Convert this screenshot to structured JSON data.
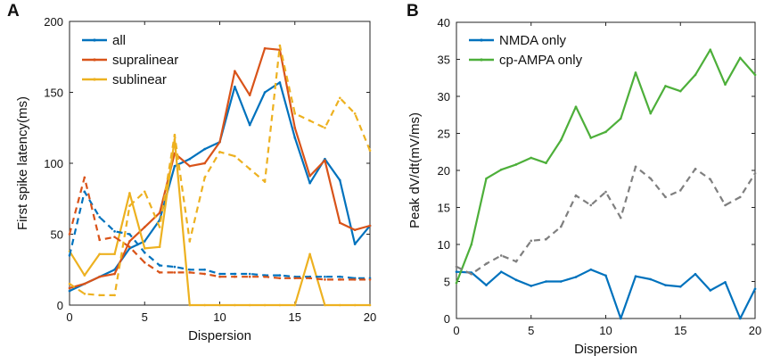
{
  "chart_data": [
    {
      "panel_label": "A",
      "type": "line",
      "xlabel": "Dispersion",
      "ylabel": "First spike latency(ms)",
      "xlim": [
        0,
        20
      ],
      "ylim": [
        0,
        200
      ],
      "xticks": [
        0,
        5,
        10,
        15,
        20
      ],
      "yticks": [
        0,
        50,
        100,
        150,
        200
      ],
      "legend_position": "top-left",
      "legend": [
        "all",
        "supralinear",
        "sublinear"
      ],
      "series": [
        {
          "name": "all",
          "style": "solid",
          "color": "#0072BD",
          "x": [
            0,
            1,
            2,
            3,
            4,
            5,
            6,
            7,
            8,
            9,
            10,
            11,
            12,
            13,
            14,
            15,
            16,
            17,
            18,
            19,
            20
          ],
          "y": [
            10,
            15,
            20,
            25,
            40,
            45,
            60,
            98,
            103,
            110,
            115,
            154,
            127,
            150,
            157,
            118,
            86,
            103,
            88,
            43,
            56
          ]
        },
        {
          "name": "supralinear",
          "style": "solid",
          "color": "#D95319",
          "x": [
            0,
            1,
            2,
            3,
            4,
            5,
            6,
            7,
            8,
            9,
            10,
            11,
            12,
            13,
            14,
            15,
            16,
            17,
            18,
            19,
            20
          ],
          "y": [
            12,
            15,
            20,
            22,
            45,
            55,
            65,
            107,
            98,
            100,
            115,
            165,
            148,
            181,
            180,
            125,
            91,
            102,
            58,
            53,
            56
          ]
        },
        {
          "name": "sublinear",
          "style": "solid",
          "color": "#EDB120",
          "x": [
            0,
            1,
            2,
            3,
            4,
            5,
            6,
            7,
            8,
            9,
            10,
            11,
            12,
            13,
            14,
            15,
            16,
            17,
            18,
            19,
            20
          ],
          "y": [
            38,
            21,
            36,
            36,
            79,
            40,
            41,
            117,
            0,
            0,
            0,
            0,
            0,
            0,
            0,
            0,
            36,
            0,
            0,
            0,
            0
          ]
        },
        {
          "name": "all (dashed)",
          "style": "dashed",
          "color": "#0072BD",
          "x": [
            0,
            1,
            2,
            3,
            4,
            5,
            6,
            7,
            8,
            9,
            10,
            11,
            12,
            13,
            14,
            15,
            16,
            17,
            18,
            19,
            20
          ],
          "y": [
            35,
            80,
            62,
            52,
            50,
            37,
            28,
            27,
            25,
            25,
            22,
            22,
            22,
            21,
            21,
            20,
            20,
            20,
            20,
            19,
            19
          ]
        },
        {
          "name": "supralinear (dashed)",
          "style": "dashed",
          "color": "#D95319",
          "x": [
            0,
            1,
            2,
            3,
            4,
            5,
            6,
            7,
            8,
            9,
            10,
            11,
            12,
            13,
            14,
            15,
            16,
            17,
            18,
            19,
            20
          ],
          "y": [
            50,
            90,
            46,
            48,
            41,
            30,
            23,
            23,
            23,
            22,
            20,
            20,
            20,
            20,
            19,
            19,
            19,
            18,
            18,
            18,
            18
          ]
        },
        {
          "name": "sublinear (dashed)",
          "style": "dashed",
          "color": "#EDB120",
          "x": [
            0,
            1,
            2,
            3,
            4,
            5,
            6,
            7,
            8,
            9,
            10,
            11,
            12,
            13,
            14,
            15,
            16,
            17,
            18,
            19,
            20
          ],
          "y": [
            15,
            8,
            7,
            7,
            70,
            80,
            55,
            120,
            45,
            90,
            108,
            105,
            96,
            87,
            183,
            135,
            130,
            125,
            146,
            135,
            109
          ]
        }
      ]
    },
    {
      "panel_label": "B",
      "type": "line",
      "xlabel": "Dispersion",
      "ylabel": "Peak dV/dt(mV/ms)",
      "xlim": [
        0,
        20
      ],
      "ylim": [
        0,
        40
      ],
      "xticks": [
        0,
        5,
        10,
        15,
        20
      ],
      "yticks": [
        0,
        5,
        10,
        15,
        20,
        25,
        30,
        35,
        40
      ],
      "legend_position": "top-left",
      "legend": [
        "NMDA only",
        "cp-AMPA only"
      ],
      "series": [
        {
          "name": "NMDA only",
          "style": "solid",
          "color": "#0072BD",
          "x": [
            0,
            1,
            2,
            3,
            4,
            5,
            6,
            7,
            8,
            9,
            10,
            11,
            12,
            13,
            14,
            15,
            16,
            17,
            18,
            19,
            20
          ],
          "y": [
            6.3,
            6.2,
            4.5,
            6.3,
            5.2,
            4.4,
            5.0,
            5.0,
            5.6,
            6.6,
            5.8,
            0,
            5.7,
            5.3,
            4.5,
            4.3,
            6.0,
            3.8,
            4.9,
            0,
            4.0
          ]
        },
        {
          "name": "cp-AMPA only",
          "style": "solid",
          "color": "#4DAF3A",
          "x": [
            0,
            1,
            2,
            3,
            4,
            5,
            6,
            7,
            8,
            9,
            10,
            11,
            12,
            13,
            14,
            15,
            16,
            17,
            18,
            19,
            20
          ],
          "y": [
            4.8,
            10.0,
            18.9,
            20.1,
            20.8,
            21.7,
            21.0,
            24.1,
            28.6,
            24.4,
            25.2,
            27.0,
            33.2,
            27.7,
            31.4,
            30.7,
            32.9,
            36.3,
            31.6,
            35.2,
            32.9
          ]
        },
        {
          "name": "gray (dashed)",
          "style": "dashed",
          "color": "#7F7F7F",
          "x": [
            0,
            1,
            2,
            3,
            4,
            5,
            6,
            7,
            8,
            9,
            10,
            11,
            12,
            13,
            14,
            15,
            16,
            17,
            18,
            19,
            20
          ],
          "y": [
            7.0,
            6.0,
            7.4,
            8.5,
            7.7,
            10.5,
            10.7,
            12.4,
            16.6,
            15.3,
            17.1,
            13.6,
            20.5,
            18.9,
            16.4,
            17.3,
            20.2,
            18.8,
            15.3,
            16.4,
            19.6
          ]
        }
      ]
    }
  ]
}
